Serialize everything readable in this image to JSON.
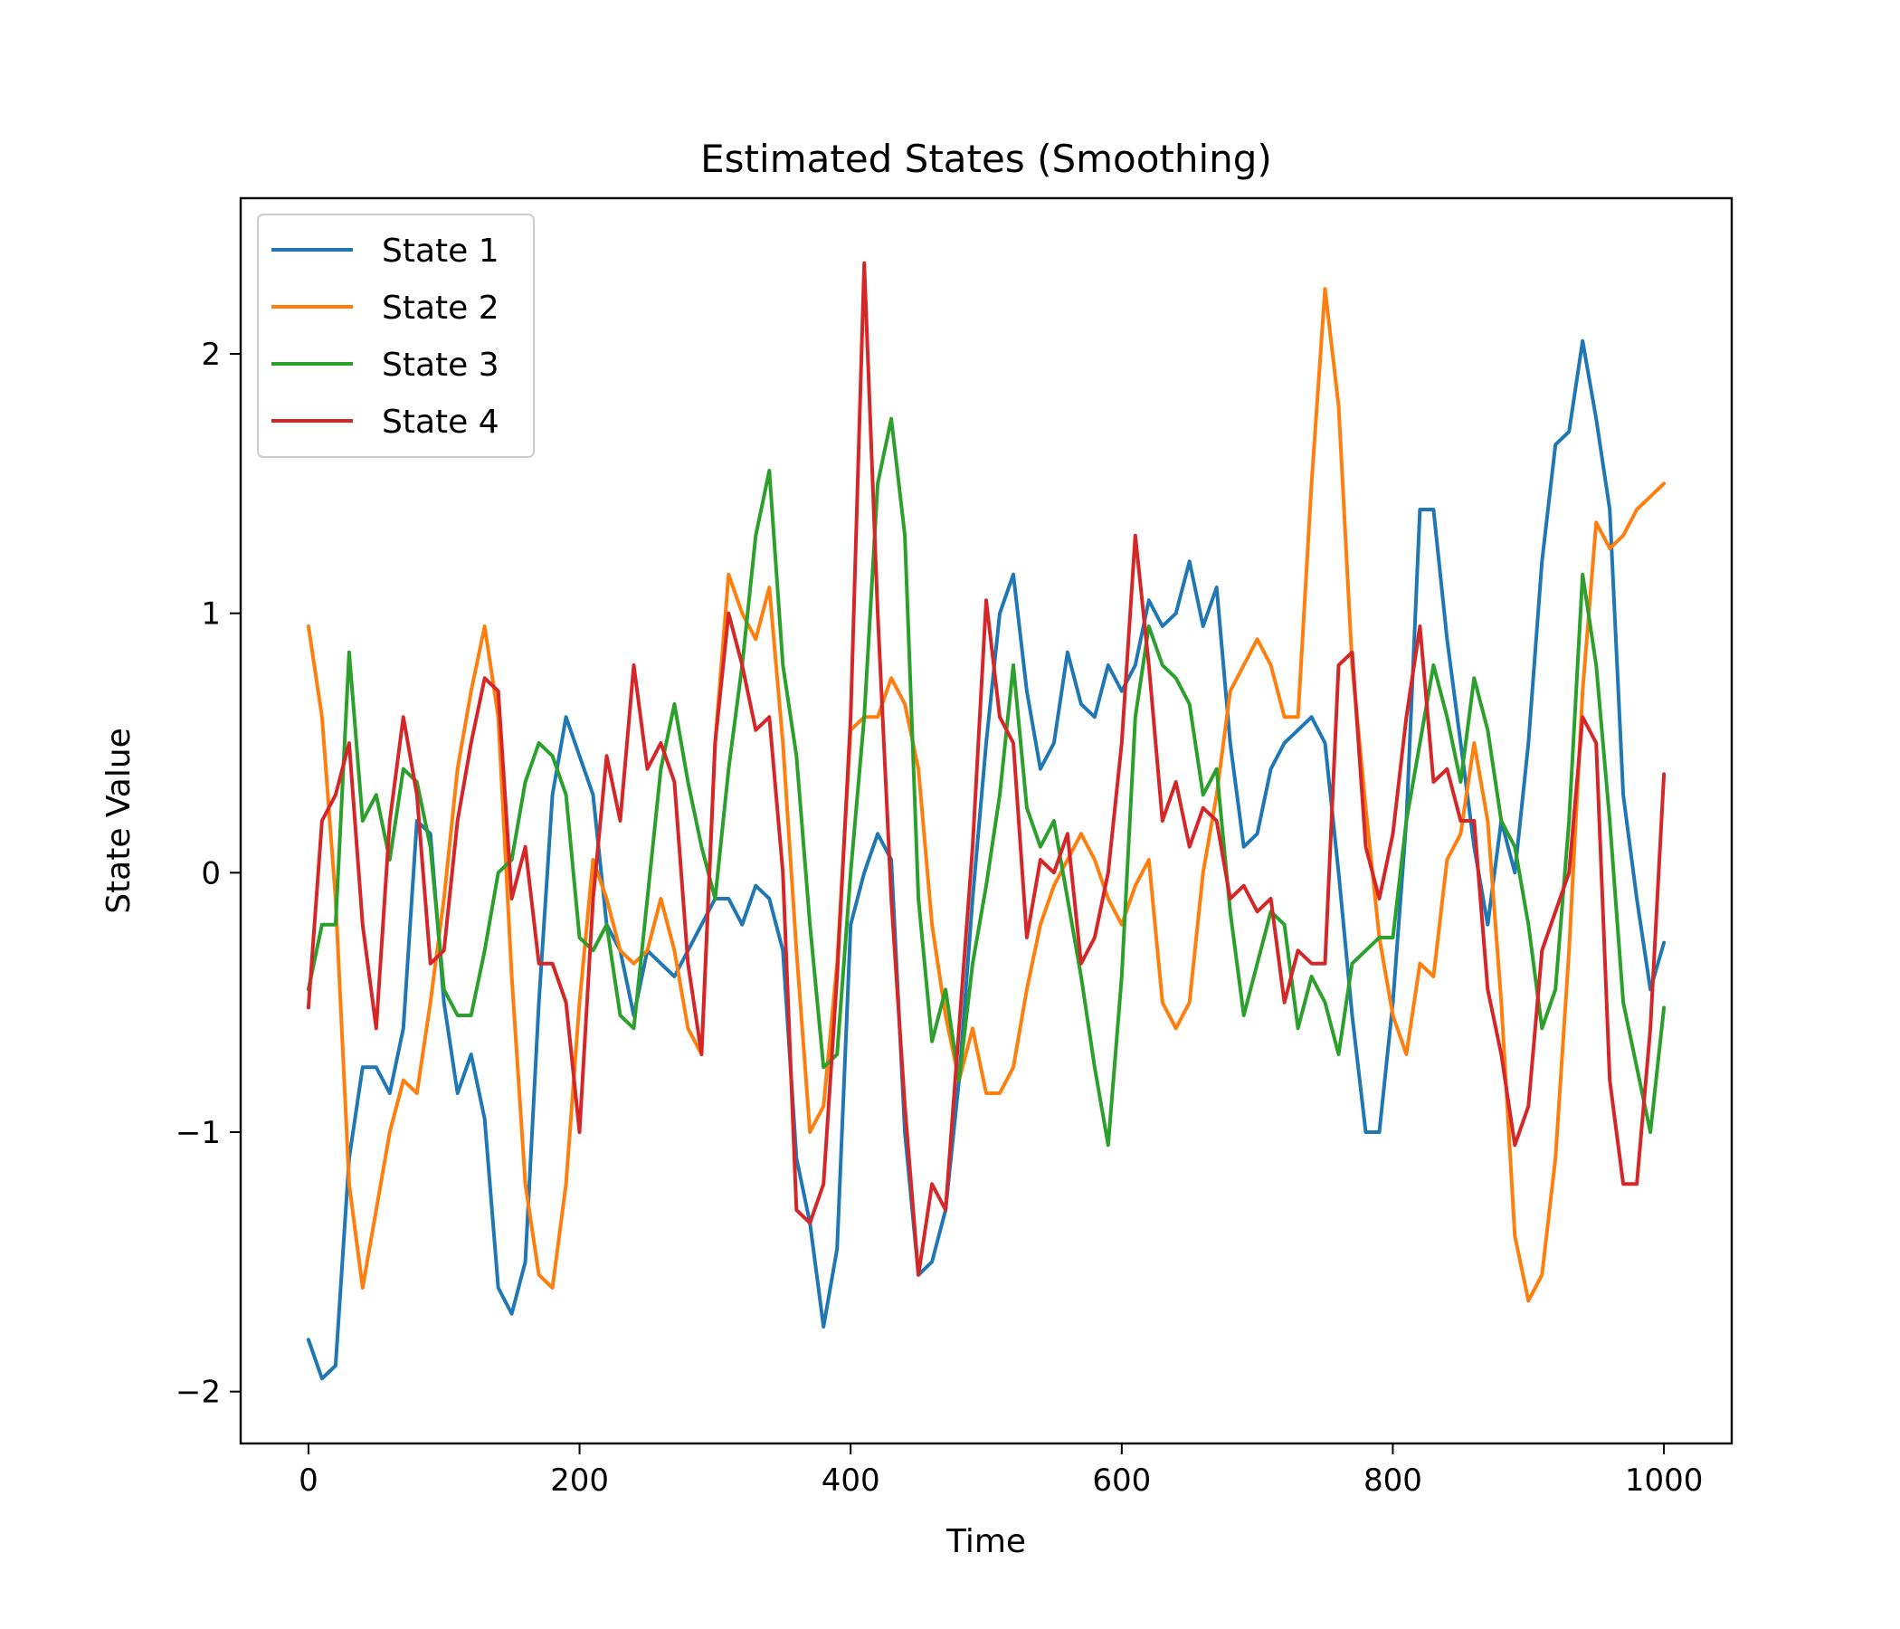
{
  "chart_data": {
    "type": "line",
    "title": "Estimated States (Smoothing)",
    "xlabel": "Time",
    "ylabel": "State Value",
    "xlim": [
      -50,
      1050
    ],
    "ylim": [
      -2.2,
      2.6
    ],
    "xticks": [
      0,
      200,
      400,
      600,
      800,
      1000
    ],
    "xtick_labels": [
      "0",
      "200",
      "400",
      "600",
      "800",
      "1000"
    ],
    "yticks": [
      -2,
      -1,
      0,
      1,
      2
    ],
    "ytick_labels": [
      "−2",
      "−1",
      "0",
      "1",
      "2"
    ],
    "grid": false,
    "legend_position": "upper-left",
    "series": [
      {
        "name": "State 1",
        "color": "#1f77b4",
        "x": [
          0,
          10,
          20,
          30,
          40,
          50,
          60,
          70,
          80,
          90,
          100,
          110,
          120,
          130,
          140,
          150,
          160,
          170,
          180,
          190,
          200,
          210,
          220,
          230,
          240,
          250,
          260,
          270,
          280,
          290,
          300,
          310,
          320,
          330,
          340,
          350,
          360,
          370,
          380,
          390,
          400,
          410,
          420,
          430,
          440,
          450,
          460,
          470,
          480,
          490,
          500,
          510,
          520,
          530,
          540,
          550,
          560,
          570,
          580,
          590,
          600,
          610,
          620,
          630,
          640,
          650,
          660,
          670,
          680,
          690,
          700,
          710,
          720,
          730,
          740,
          750,
          760,
          770,
          780,
          790,
          800,
          810,
          820,
          830,
          840,
          850,
          860,
          870,
          880,
          890,
          900,
          910,
          920,
          930,
          940,
          950,
          960,
          970,
          980,
          990,
          1000
        ],
        "values": [
          -1.8,
          -1.95,
          -1.9,
          -1.1,
          -0.75,
          -0.75,
          -0.85,
          -0.6,
          0.2,
          0.15,
          -0.5,
          -0.85,
          -0.7,
          -0.95,
          -1.6,
          -1.7,
          -1.5,
          -0.5,
          0.3,
          0.6,
          0.45,
          0.3,
          -0.2,
          -0.3,
          -0.55,
          -0.3,
          -0.35,
          -0.4,
          -0.3,
          -0.2,
          -0.1,
          -0.1,
          -0.2,
          -0.05,
          -0.1,
          -0.3,
          -1.1,
          -1.35,
          -1.75,
          -1.45,
          -0.2,
          0.0,
          0.15,
          0.05,
          -1.0,
          -1.55,
          -1.5,
          -1.3,
          -0.8,
          -0.1,
          0.5,
          1.0,
          1.15,
          0.7,
          0.4,
          0.5,
          0.85,
          0.65,
          0.6,
          0.8,
          0.7,
          0.8,
          1.05,
          0.95,
          1.0,
          1.2,
          0.95,
          1.1,
          0.5,
          0.1,
          0.15,
          0.4,
          0.5,
          0.55,
          0.6,
          0.5,
          0.0,
          -0.55,
          -1.0,
          -1.0,
          -0.5,
          0.2,
          1.4,
          1.4,
          0.9,
          0.5,
          0.1,
          -0.2,
          0.2,
          0.0,
          0.5,
          1.2,
          1.65,
          1.7,
          2.05,
          1.75,
          1.4,
          0.3,
          -0.1,
          -0.45,
          -0.27
        ]
      },
      {
        "name": "State 2",
        "color": "#ff7f0e",
        "x": [
          0,
          10,
          20,
          30,
          40,
          50,
          60,
          70,
          80,
          90,
          100,
          110,
          120,
          130,
          140,
          150,
          160,
          170,
          180,
          190,
          200,
          210,
          220,
          230,
          240,
          250,
          260,
          270,
          280,
          290,
          300,
          310,
          320,
          330,
          340,
          350,
          360,
          370,
          380,
          390,
          400,
          410,
          420,
          430,
          440,
          450,
          460,
          470,
          480,
          490,
          500,
          510,
          520,
          530,
          540,
          550,
          560,
          570,
          580,
          590,
          600,
          610,
          620,
          630,
          640,
          650,
          660,
          670,
          680,
          690,
          700,
          710,
          720,
          730,
          740,
          750,
          760,
          770,
          780,
          790,
          800,
          810,
          820,
          830,
          840,
          850,
          860,
          870,
          880,
          890,
          900,
          910,
          920,
          930,
          940,
          950,
          960,
          970,
          980,
          990,
          1000
        ],
        "values": [
          0.95,
          0.6,
          -0.1,
          -1.2,
          -1.6,
          -1.3,
          -1.0,
          -0.8,
          -0.85,
          -0.5,
          -0.1,
          0.4,
          0.7,
          0.95,
          0.6,
          -0.4,
          -1.2,
          -1.55,
          -1.6,
          -1.2,
          -0.5,
          0.05,
          -0.1,
          -0.3,
          -0.35,
          -0.3,
          -0.1,
          -0.3,
          -0.6,
          -0.7,
          0.5,
          1.15,
          1.0,
          0.9,
          1.1,
          0.5,
          -0.3,
          -1.0,
          -0.9,
          -0.35,
          0.55,
          0.6,
          0.6,
          0.75,
          0.65,
          0.4,
          -0.2,
          -0.55,
          -0.8,
          -0.6,
          -0.85,
          -0.85,
          -0.75,
          -0.45,
          -0.2,
          -0.05,
          0.05,
          0.15,
          0.05,
          -0.1,
          -0.2,
          -0.05,
          0.05,
          -0.5,
          -0.6,
          -0.5,
          0.0,
          0.3,
          0.7,
          0.8,
          0.9,
          0.8,
          0.6,
          0.6,
          1.5,
          2.25,
          1.8,
          0.8,
          0.25,
          -0.25,
          -0.55,
          -0.7,
          -0.35,
          -0.4,
          0.05,
          0.15,
          0.5,
          0.2,
          -0.5,
          -1.4,
          -1.65,
          -1.55,
          -1.1,
          -0.3,
          0.7,
          1.35,
          1.25,
          1.3,
          1.4,
          1.45,
          1.5
        ]
      },
      {
        "name": "State 3",
        "color": "#2ca02c",
        "x": [
          0,
          10,
          20,
          30,
          40,
          50,
          60,
          70,
          80,
          90,
          100,
          110,
          120,
          130,
          140,
          150,
          160,
          170,
          180,
          190,
          200,
          210,
          220,
          230,
          240,
          250,
          260,
          270,
          280,
          290,
          300,
          310,
          320,
          330,
          340,
          350,
          360,
          370,
          380,
          390,
          400,
          410,
          420,
          430,
          440,
          450,
          460,
          470,
          480,
          490,
          500,
          510,
          520,
          530,
          540,
          550,
          560,
          570,
          580,
          590,
          600,
          610,
          620,
          630,
          640,
          650,
          660,
          670,
          680,
          690,
          700,
          710,
          720,
          730,
          740,
          750,
          760,
          770,
          780,
          790,
          800,
          810,
          820,
          830,
          840,
          850,
          860,
          870,
          880,
          890,
          900,
          910,
          920,
          930,
          940,
          950,
          960,
          970,
          980,
          990,
          1000
        ],
        "values": [
          -0.45,
          -0.2,
          -0.2,
          0.85,
          0.2,
          0.3,
          0.05,
          0.4,
          0.35,
          0.1,
          -0.45,
          -0.55,
          -0.55,
          -0.3,
          0.0,
          0.05,
          0.35,
          0.5,
          0.45,
          0.3,
          -0.25,
          -0.3,
          -0.2,
          -0.55,
          -0.6,
          -0.1,
          0.4,
          0.65,
          0.35,
          0.1,
          -0.1,
          0.4,
          0.8,
          1.3,
          1.55,
          0.8,
          0.45,
          -0.2,
          -0.75,
          -0.7,
          0.0,
          0.6,
          1.5,
          1.75,
          1.3,
          -0.1,
          -0.65,
          -0.45,
          -0.8,
          -0.35,
          -0.05,
          0.3,
          0.8,
          0.25,
          0.1,
          0.2,
          -0.1,
          -0.4,
          -0.75,
          -1.05,
          -0.4,
          0.6,
          0.95,
          0.8,
          0.75,
          0.65,
          0.3,
          0.4,
          -0.15,
          -0.55,
          -0.35,
          -0.15,
          -0.2,
          -0.6,
          -0.4,
          -0.5,
          -0.7,
          -0.35,
          -0.3,
          -0.25,
          -0.25,
          0.2,
          0.5,
          0.8,
          0.6,
          0.35,
          0.75,
          0.55,
          0.2,
          0.1,
          -0.2,
          -0.6,
          -0.45,
          0.2,
          1.15,
          0.8,
          0.2,
          -0.5,
          -0.75,
          -1.0,
          -0.52
        ]
      },
      {
        "name": "State 4",
        "color": "#d62728",
        "x": [
          0,
          10,
          20,
          30,
          40,
          50,
          60,
          70,
          80,
          90,
          100,
          110,
          120,
          130,
          140,
          150,
          160,
          170,
          180,
          190,
          200,
          210,
          220,
          230,
          240,
          250,
          260,
          270,
          280,
          290,
          300,
          310,
          320,
          330,
          340,
          350,
          360,
          370,
          380,
          390,
          400,
          410,
          420,
          430,
          440,
          450,
          460,
          470,
          480,
          490,
          500,
          510,
          520,
          530,
          540,
          550,
          560,
          570,
          580,
          590,
          600,
          610,
          620,
          630,
          640,
          650,
          660,
          670,
          680,
          690,
          700,
          710,
          720,
          730,
          740,
          750,
          760,
          770,
          780,
          790,
          800,
          810,
          820,
          830,
          840,
          850,
          860,
          870,
          880,
          890,
          900,
          910,
          920,
          930,
          940,
          950,
          960,
          970,
          980,
          990,
          1000
        ],
        "values": [
          -0.52,
          0.2,
          0.3,
          0.5,
          -0.2,
          -0.6,
          0.2,
          0.6,
          0.3,
          -0.35,
          -0.3,
          0.2,
          0.5,
          0.75,
          0.7,
          -0.1,
          0.1,
          -0.35,
          -0.35,
          -0.5,
          -1.0,
          -0.1,
          0.45,
          0.2,
          0.8,
          0.4,
          0.5,
          0.35,
          -0.35,
          -0.7,
          0.5,
          1.0,
          0.8,
          0.55,
          0.6,
          0.0,
          -1.3,
          -1.35,
          -1.2,
          -0.4,
          0.6,
          2.35,
          1.0,
          -0.1,
          -0.9,
          -1.55,
          -1.2,
          -1.3,
          -0.6,
          0.1,
          1.05,
          0.6,
          0.5,
          -0.25,
          0.05,
          0.0,
          0.15,
          -0.35,
          -0.25,
          0.0,
          0.5,
          1.3,
          0.8,
          0.2,
          0.35,
          0.1,
          0.25,
          0.2,
          -0.1,
          -0.05,
          -0.15,
          -0.1,
          -0.5,
          -0.3,
          -0.35,
          -0.35,
          0.8,
          0.85,
          0.1,
          -0.1,
          0.15,
          0.6,
          0.95,
          0.35,
          0.4,
          0.2,
          0.2,
          -0.45,
          -0.7,
          -1.05,
          -0.9,
          -0.3,
          -0.15,
          0.0,
          0.6,
          0.5,
          -0.8,
          -1.2,
          -1.2,
          -0.6,
          0.38
        ]
      }
    ]
  }
}
